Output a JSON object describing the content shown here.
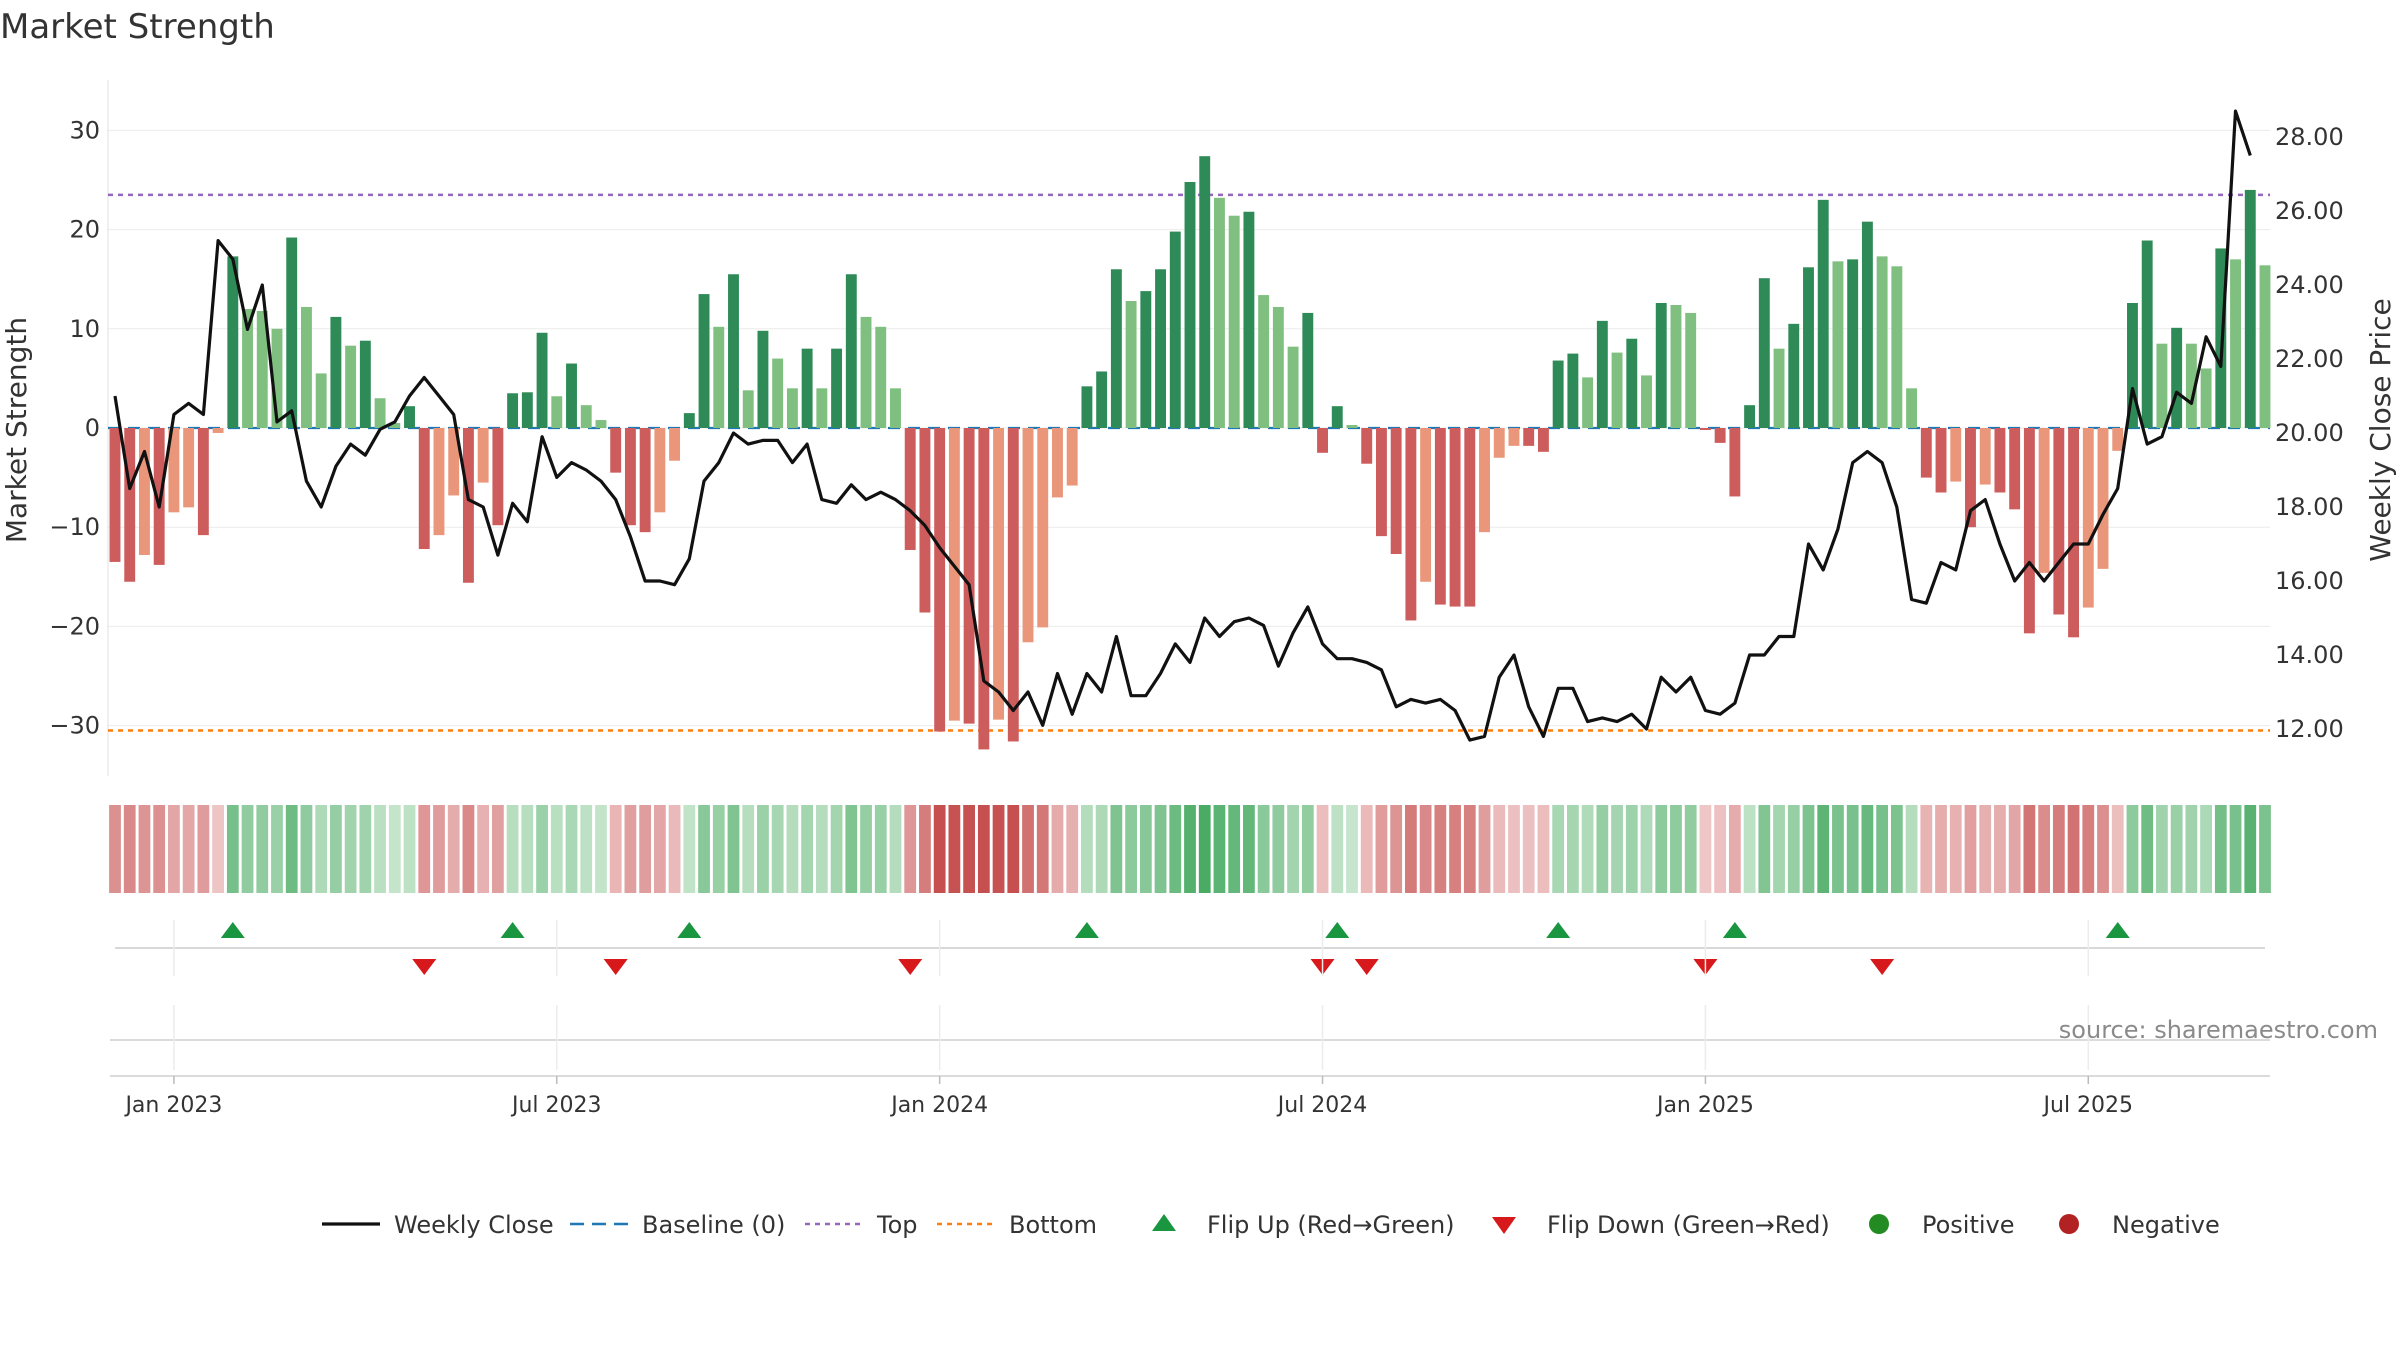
{
  "chart_data": {
    "type": "bar+line",
    "title": "Market Strength",
    "ylabel_left": "Market Strength",
    "ylabel_right": "Weekly Close Price",
    "left_ylim": [
      -35,
      35
    ],
    "right_ylim": [
      10.8,
      29.0
    ],
    "left_ticks": [
      "30",
      "20",
      "10",
      "0",
      "−10",
      "−20",
      "−30"
    ],
    "left_tick_values": [
      30,
      20,
      10,
      0,
      -10,
      -20,
      -30
    ],
    "right_ticks": [
      "28.00",
      "26.00",
      "24.00",
      "22.00",
      "20.00",
      "18.00",
      "16.00",
      "14.00",
      "12.00"
    ],
    "right_tick_values": [
      28,
      26,
      24,
      22,
      20,
      18,
      16,
      14,
      12
    ],
    "x_ticks": [
      "Jan 2023",
      "Jul 2023",
      "Jan 2024",
      "Jul 2024",
      "Jan 2025",
      "Jul 2025"
    ],
    "x_tick_weeks": [
      4,
      30,
      56,
      82,
      108,
      134
    ],
    "top_line": 23.5,
    "bottom_line": -30.5,
    "baseline": 0,
    "strength": [
      -13.5,
      -15.5,
      -12.8,
      -13.8,
      -8.5,
      -8,
      -10.8,
      -0.5,
      17.3,
      12,
      11.8,
      10,
      19.2,
      12.2,
      5.5,
      11.2,
      8.3,
      8.8,
      3,
      0.5,
      2.2,
      -12.2,
      -10.8,
      -6.8,
      -15.6,
      -5.5,
      -9.8,
      3.5,
      3.6,
      9.6,
      3.2,
      6.5,
      2.3,
      0.8,
      -4.5,
      -9.8,
      -10.5,
      -8.5,
      -3.3,
      1.5,
      13.5,
      10.2,
      15.5,
      3.8,
      9.8,
      7,
      4,
      8,
      4,
      8,
      15.5,
      11.2,
      10.2,
      4,
      -12.3,
      -18.6,
      -30.6,
      -29.5,
      -29.8,
      -32.4,
      -29.4,
      -31.6,
      -21.6,
      -20.1,
      -7,
      -5.8,
      4.2,
      5.7,
      16,
      12.8,
      13.8,
      16,
      19.8,
      24.8,
      27.4,
      23.2,
      21.4,
      21.8,
      13.4,
      12.2,
      8.2,
      11.6,
      -2.5,
      2.2,
      0.3,
      -3.6,
      -10.9,
      -12.7,
      -19.4,
      -15.5,
      -17.8,
      -18,
      -18,
      -10.5,
      -3,
      -1.8,
      -1.8,
      -2.4,
      6.8,
      7.5,
      5.1,
      10.8,
      7.6,
      9,
      5.3,
      12.6,
      12.4,
      11.6,
      -0.2,
      -1.5,
      -6.9,
      2.3,
      15.1,
      8,
      10.5,
      16.2,
      23,
      16.8,
      17,
      20.8,
      17.3,
      16.3,
      4,
      -5,
      -6.5,
      -5.4,
      -10,
      -5.7,
      -6.5,
      -8.2,
      -20.7,
      -14.6,
      -18.8,
      -21.1,
      -18.1,
      -14.2,
      -2.3,
      12.6,
      18.9,
      8.5,
      10.1,
      8.5,
      6,
      18.1,
      17,
      24,
      16.4
    ],
    "weekly_close": [
      21.0,
      18.5,
      19.5,
      18.0,
      20.5,
      20.8,
      20.5,
      25.2,
      24.7,
      22.8,
      24.0,
      20.3,
      20.6,
      18.7,
      18.0,
      19.1,
      19.7,
      19.4,
      20.1,
      20.3,
      21.0,
      21.5,
      21.0,
      20.5,
      18.2,
      18.0,
      16.7,
      18.1,
      17.6,
      19.9,
      18.8,
      19.2,
      19.0,
      18.7,
      18.2,
      17.2,
      16.0,
      16.0,
      15.9,
      16.6,
      18.7,
      19.2,
      20.0,
      19.7,
      19.8,
      19.8,
      19.2,
      19.7,
      18.2,
      18.1,
      18.6,
      18.2,
      18.4,
      18.2,
      17.9,
      17.5,
      16.9,
      16.4,
      15.9,
      13.3,
      13.0,
      12.5,
      13.0,
      12.1,
      13.5,
      12.4,
      13.5,
      13.0,
      14.5,
      12.9,
      12.9,
      13.5,
      14.3,
      13.8,
      15.0,
      14.5,
      14.9,
      15.0,
      14.8,
      13.7,
      14.6,
      15.3,
      14.3,
      13.9,
      13.9,
      13.8,
      13.6,
      12.6,
      12.8,
      12.7,
      12.8,
      12.5,
      11.7,
      11.8,
      13.4,
      14.0,
      12.6,
      11.8,
      13.1,
      13.1,
      12.2,
      12.3,
      12.2,
      12.4,
      12.0,
      13.4,
      13.0,
      13.4,
      12.5,
      12.4,
      12.7,
      14.0,
      14.0,
      14.5,
      14.5,
      17.0,
      16.3,
      17.4,
      19.2,
      19.5,
      19.2,
      18.0,
      15.5,
      15.4,
      16.5,
      16.3,
      17.9,
      18.2,
      17.0,
      16.0,
      16.5,
      16.0,
      16.5,
      17.0,
      17.0,
      17.8,
      18.5,
      21.2,
      19.7,
      19.9,
      21.1,
      20.8,
      22.6,
      21.8,
      28.7,
      27.5
    ],
    "flip_up_weeks": [
      8,
      27,
      39,
      66,
      83,
      98,
      110,
      136
    ],
    "flip_down_weeks": [
      21,
      34,
      54,
      82,
      85,
      108,
      120
    ],
    "legend": [
      {
        "key": "weekly",
        "label": "Weekly Close"
      },
      {
        "key": "baseline",
        "label": "Baseline (0)"
      },
      {
        "key": "top",
        "label": "Top"
      },
      {
        "key": "bottom",
        "label": "Bottom"
      },
      {
        "key": "flipup",
        "label": "Flip Up (Red→Green)"
      },
      {
        "key": "flipdown",
        "label": "Flip Down (Green→Red)"
      },
      {
        "key": "positive",
        "label": "Positive"
      },
      {
        "key": "negative",
        "label": "Negative"
      }
    ],
    "source": "source: sharemaestro.com"
  },
  "colors": {
    "pos_dark": "#2e8b57",
    "pos_light": "#7fbf7f",
    "neg_dark": "#cd5c5c",
    "neg_light": "#e9967a",
    "line": "#111111",
    "baseline": "#1f77b4",
    "top": "#9467bd",
    "bottom": "#ff7f0e",
    "flip_up": "#1a9641",
    "flip_down": "#d7191c",
    "positive_dot": "#228b22",
    "negative_dot": "#b22222"
  }
}
